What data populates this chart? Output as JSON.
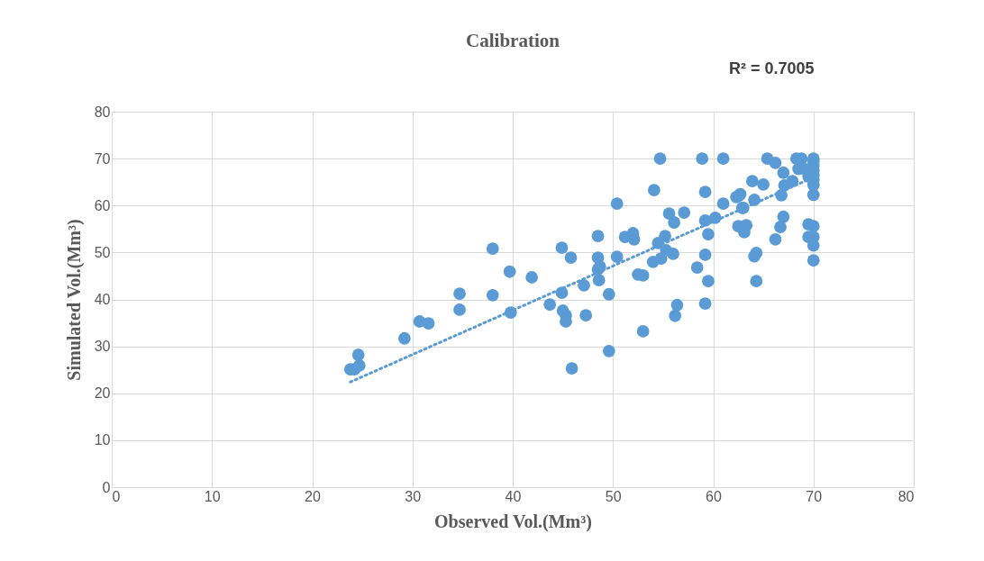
{
  "chart_data": {
    "type": "scatter",
    "title": "Calibration",
    "xlabel": "Observed Vol.(Mm³)",
    "ylabel": "Simulated Vol.(Mm³)",
    "annotations": [
      "R² = 0.7005"
    ],
    "xlim": [
      0,
      80
    ],
    "xticks": [
      0,
      10,
      20,
      30,
      40,
      50,
      60,
      70,
      80
    ],
    "ylim": [
      0,
      80
    ],
    "yticks": [
      0,
      10,
      20,
      30,
      40,
      50,
      60,
      70,
      80
    ],
    "grid": true,
    "marker": "circle",
    "series": [
      {
        "color": "#5b9bd5",
        "x": [
          23.8,
          24.2,
          24.7,
          24.6,
          29.2,
          30.7,
          31.6,
          34.7,
          34.7,
          38.0,
          38.0,
          39.7,
          39.8,
          41.9,
          43.7,
          44.9,
          44.9,
          45.0,
          45.3,
          45.3,
          45.8,
          45.9,
          47.1,
          47.3,
          48.5,
          48.5,
          48.5,
          48.6,
          48.7,
          49.6,
          49.6,
          50.4,
          50.4,
          51.2,
          52.0,
          52.1,
          52.5,
          53.0,
          53.0,
          54.0,
          54.5,
          54.8,
          55.3,
          55.2,
          54.1,
          54.7,
          55.6,
          56.1,
          56.0,
          56.4,
          56.2,
          57.1,
          58.4,
          58.9,
          59.2,
          59.2,
          59.2,
          59.2,
          59.5,
          59.5,
          60.2,
          61.0,
          61.0,
          62.3,
          62.7,
          62.5,
          63.1,
          62.9,
          63.3,
          63.9,
          64.1,
          64.1,
          64.3,
          64.3,
          65.0,
          65.4,
          66.2,
          66.2,
          66.7,
          67.0,
          67.0,
          67.9,
          67.1,
          66.8,
          62.6,
          63.0,
          68.3,
          68.5,
          68.8,
          69.0,
          69.5,
          69.5,
          69.5,
          70.0,
          70.0,
          70.0,
          70.0,
          70.0,
          70.0,
          70.0,
          70.0,
          70.0,
          70.0,
          70.0,
          70.0
        ],
        "values": [
          25.1,
          25.1,
          25.9,
          28.2,
          31.7,
          35.3,
          34.9,
          41.2,
          37.8,
          50.8,
          40.9,
          45.9,
          37.2,
          44.7,
          38.9,
          51.0,
          41.4,
          37.6,
          36.6,
          35.3,
          48.9,
          25.3,
          43.0,
          36.6,
          53.5,
          48.9,
          46.4,
          44.1,
          47.0,
          41.1,
          29.0,
          60.4,
          49.1,
          53.3,
          54.1,
          52.8,
          45.3,
          45.1,
          33.2,
          48.0,
          52.0,
          48.7,
          50.5,
          53.5,
          63.3,
          70.0,
          58.3,
          56.4,
          49.7,
          38.8,
          36.5,
          58.5,
          46.8,
          70.0,
          62.9,
          56.8,
          49.5,
          39.1,
          53.9,
          43.9,
          57.4,
          70.0,
          60.4,
          61.8,
          62.4,
          55.6,
          54.3,
          59.5,
          55.8,
          65.2,
          61.2,
          49.2,
          49.9,
          43.9,
          64.5,
          70.0,
          69.1,
          52.8,
          55.4,
          57.6,
          67.0,
          65.2,
          64.3,
          62.2,
          62.2,
          59.5,
          70.0,
          67.8,
          70.0,
          67.9,
          66.2,
          56.0,
          53.3,
          70.0,
          69.3,
          68.5,
          67.5,
          66.5,
          65.5,
          64.4,
          62.3,
          55.6,
          53.3,
          51.5,
          48.3
        ]
      },
      {
        "type": "line",
        "color": "#5b9bd5",
        "line_style": "dotted",
        "marker": "none",
        "x": [
          23.8,
          70.0
        ],
        "values": [
          22.4,
          66.0
        ]
      }
    ]
  }
}
